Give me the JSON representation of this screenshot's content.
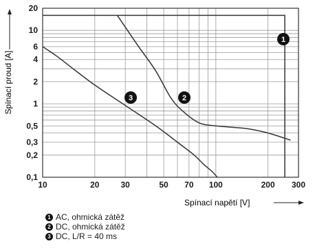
{
  "chart_data": {
    "type": "line",
    "xscale": "log",
    "yscale": "log",
    "xlim": [
      10,
      300
    ],
    "ylim": [
      0.1,
      20
    ],
    "xlabel": "Spínací napětí [V]",
    "ylabel": "Spínací proud [A]",
    "x_ticks": [
      10,
      20,
      30,
      50,
      70,
      100,
      200,
      300
    ],
    "x_tick_labels": [
      "10",
      "20",
      "30",
      "50",
      "70",
      "100",
      "200",
      "300"
    ],
    "y_ticks": [
      0.1,
      0.2,
      0.3,
      0.5,
      1,
      2,
      4,
      6,
      10,
      20
    ],
    "y_tick_labels": [
      "0,1",
      "0,2",
      "0,3",
      "0,5",
      "1",
      "2",
      "4",
      "6",
      "10",
      "20"
    ],
    "grid": true,
    "series": [
      {
        "name": "AC, ohmická zátěž",
        "marker": "1",
        "x": [
          10,
          250,
          250,
          250
        ],
        "y": [
          16,
          16,
          1,
          0.1
        ]
      },
      {
        "name": "DC, ohmická zátěž",
        "marker": "2",
        "x": [
          27,
          35,
          45,
          55,
          65,
          80,
          100,
          150,
          200,
          270
        ],
        "y": [
          16,
          6.5,
          2.8,
          1.2,
          0.78,
          0.55,
          0.5,
          0.46,
          0.4,
          0.32
        ]
      },
      {
        "name": "DC, L/R = 40 ms",
        "marker": "3",
        "x": [
          10,
          12,
          15,
          20,
          30,
          45,
          60,
          75,
          85,
          95,
          102
        ],
        "y": [
          6,
          4.5,
          3,
          1.8,
          0.95,
          0.5,
          0.3,
          0.2,
          0.15,
          0.12,
          0.1
        ]
      }
    ],
    "legend": [
      {
        "marker": "1",
        "label": "AC, ohmická zátěž"
      },
      {
        "marker": "2",
        "label": "DC, ohmická zátěž"
      },
      {
        "marker": "3",
        "label": "DC, L/R = 40 ms"
      }
    ],
    "colors": {
      "line": "#333333",
      "grid": "#9a9a9a",
      "frame": "#333333"
    }
  }
}
